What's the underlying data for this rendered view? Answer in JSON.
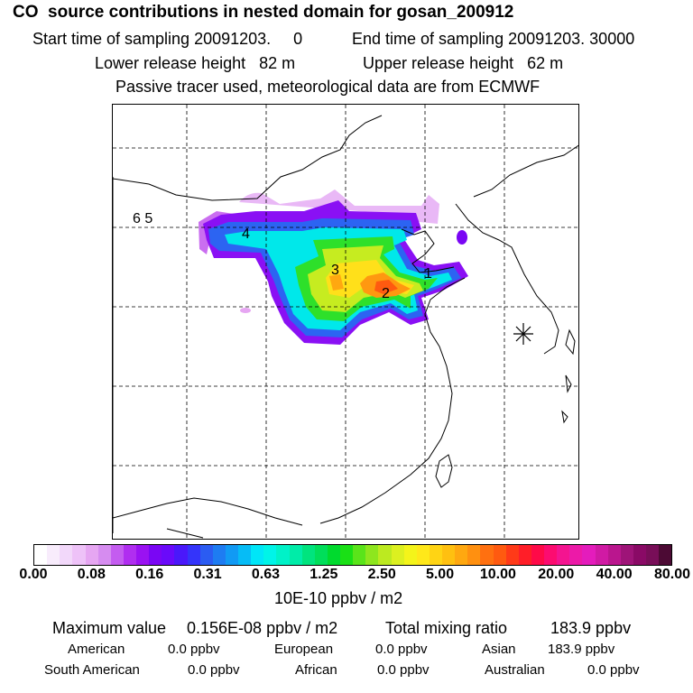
{
  "header": {
    "title": "CO  source contributions in nested domain for gosan_200912",
    "line1_start": "Start time of sampling 20091203.     0",
    "line1_end": "End time of sampling 20091203. 30000",
    "line2_lower": "Lower release height   82 m",
    "line2_upper": "Upper release height   62 m",
    "line3": "Passive tracer used, meteorological data are from ECMWF"
  },
  "map": {
    "labels": [
      "1",
      "2",
      "3",
      "4",
      "6 5"
    ],
    "receptor_marker": "asterisk-icon",
    "colors": {
      "land_outline": "#000000",
      "grid": "#000000"
    }
  },
  "colorbar": {
    "colors": [
      "#ffffff",
      "#f8ecfc",
      "#f2d8fa",
      "#eec2f8",
      "#e6a6f2",
      "#d68cf0",
      "#c45cf0",
      "#b02ef0",
      "#9a12f2",
      "#7a06f4",
      "#6a0afa",
      "#4a18fa",
      "#3434fa",
      "#2b5cf2",
      "#1e7cf2",
      "#119af4",
      "#06bcf6",
      "#00e6f8",
      "#00f4e8",
      "#00f2c8",
      "#00eca8",
      "#00e47e",
      "#00de5a",
      "#00da2e",
      "#1ae016",
      "#5ae41a",
      "#8ee61e",
      "#bcea20",
      "#dcf020",
      "#f4f41a",
      "#ffe81a",
      "#ffd414",
      "#ffc010",
      "#ffa810",
      "#ff9010",
      "#ff7010",
      "#ff5a10",
      "#ff3a18",
      "#ff1e28",
      "#ff0a48",
      "#fc0c70",
      "#f41490",
      "#ec1aa8",
      "#e41cbc",
      "#d01aa4",
      "#ba168e",
      "#9e1478",
      "#8a0a66",
      "#780e58",
      "#4c0a34"
    ],
    "tick_labels": [
      "0.00",
      "0.08",
      "0.16",
      "0.31",
      "0.63",
      "1.25",
      "2.50",
      "5.00",
      "10.00",
      "20.00",
      "40.00",
      "80.00"
    ],
    "unit": "10E-10 ppbv / m2"
  },
  "stats": {
    "max_label": "Maximum value",
    "max_value": "0.156E-08 ppbv / m2",
    "total_label": "Total mixing ratio",
    "total_value": "183.9 ppbv",
    "american_label": "American",
    "american_value": "0.0 ppbv",
    "european_label": "European",
    "european_value": "0.0 ppbv",
    "asian_label": "Asian",
    "asian_value": "183.9 ppbv",
    "south_american_label": "South American",
    "south_american_value": "0.0 ppbv",
    "african_label": "African",
    "african_value": "0.0 ppbv",
    "australian_label": "Australian",
    "australian_value": "0.0 ppbv"
  }
}
